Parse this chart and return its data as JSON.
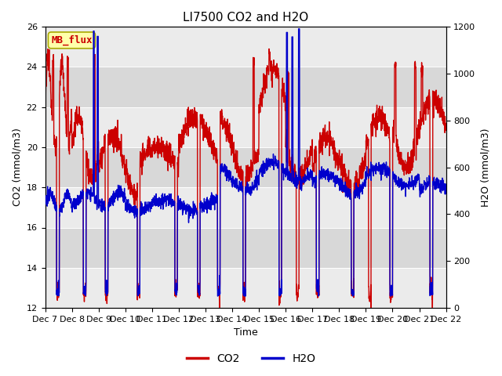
{
  "title": "LI7500 CO2 and H2O",
  "xlabel": "Time",
  "ylabel_left": "CO2 (mmol/m3)",
  "ylabel_right": "H2O (mmol/m3)",
  "ylim_left": [
    12,
    26
  ],
  "ylim_right": [
    0,
    1200
  ],
  "yticks_left": [
    12,
    14,
    16,
    18,
    20,
    22,
    24,
    26
  ],
  "yticks_right": [
    0,
    200,
    400,
    600,
    800,
    1000,
    1200
  ],
  "co2_color": "#cc0000",
  "h2o_color": "#0000cc",
  "co2_linewidth": 1.0,
  "h2o_linewidth": 1.0,
  "legend_co2": "CO2",
  "legend_h2o": "H2O",
  "watermark_text": "MB_flux",
  "watermark_color": "#cc0000",
  "watermark_bg": "#ffffaa",
  "background_color": "#d8d8d8",
  "grid_color": "#ffffff",
  "n_points": 2160,
  "title_fontsize": 11,
  "axis_fontsize": 9,
  "tick_fontsize": 8,
  "legend_fontsize": 10
}
